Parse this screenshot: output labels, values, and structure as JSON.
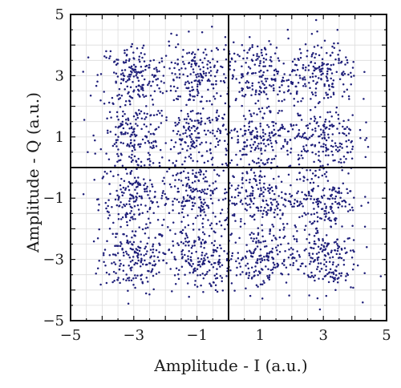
{
  "chart_data": {
    "type": "scatter",
    "title": "",
    "xlabel": "Amplitude - I (a.u.)",
    "ylabel": "Amplitude - Q (a.u.)",
    "xlim": [
      -5,
      5
    ],
    "ylim": [
      -5,
      5
    ],
    "xticks": [
      "−5",
      "−3",
      "−1",
      "1",
      "3",
      "5"
    ],
    "yticks": [
      "5",
      "3",
      "1",
      "−1",
      "−3",
      "−5"
    ],
    "xtick_values": [
      -5,
      -3,
      -1,
      1,
      3,
      5
    ],
    "ytick_values": [
      5,
      3,
      1,
      -1,
      -3,
      -5
    ],
    "grid": true,
    "zero_axes": true,
    "series": [
      {
        "kind": "16-QAM constellation",
        "centers_i": [
          -3,
          -1,
          1,
          3
        ],
        "centers_q": [
          -3,
          -1,
          1,
          3
        ],
        "spread": 0.55,
        "points_per_cluster": 180,
        "color": "#1f1f7a"
      }
    ]
  },
  "colors": {
    "grid": "#dcdcdc",
    "frame": "#111111",
    "point": "#1f1f7a"
  }
}
